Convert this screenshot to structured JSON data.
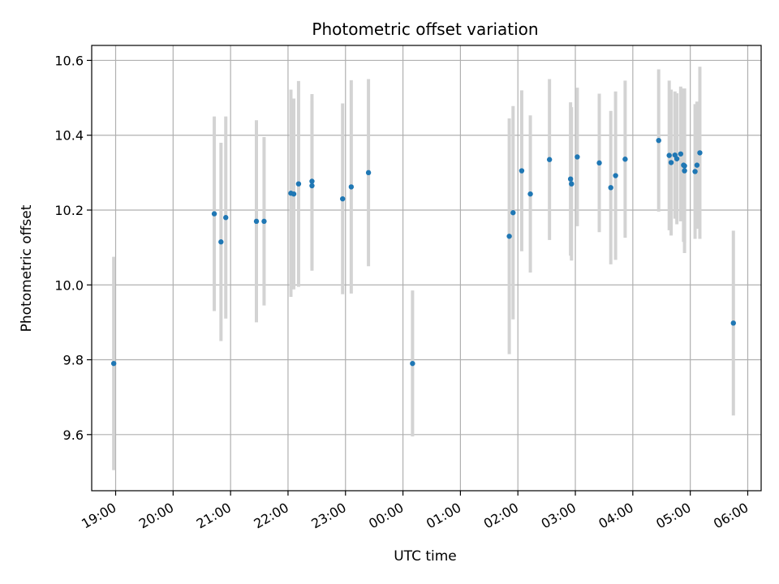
{
  "chart_data": {
    "type": "scatter",
    "title": "Photometric offset variation",
    "xlabel": "UTC time",
    "ylabel": "Photometric offset",
    "x_unit": "UTC date-time",
    "xlim": [
      "2000-01-01T18:35",
      "2000-01-02T06:14"
    ],
    "ylim": [
      9.45,
      10.64
    ],
    "grid": true,
    "x_ticks": [
      {
        "value": "2000-01-01T19:00",
        "label": "19:00"
      },
      {
        "value": "2000-01-01T20:00",
        "label": "20:00"
      },
      {
        "value": "2000-01-01T21:00",
        "label": "21:00"
      },
      {
        "value": "2000-01-01T22:00",
        "label": "22:00"
      },
      {
        "value": "2000-01-01T23:00",
        "label": "23:00"
      },
      {
        "value": "2000-01-02T00:00",
        "label": "00:00"
      },
      {
        "value": "2000-01-02T01:00",
        "label": "01:00"
      },
      {
        "value": "2000-01-02T02:00",
        "label": "02:00"
      },
      {
        "value": "2000-01-02T03:00",
        "label": "03:00"
      },
      {
        "value": "2000-01-02T04:00",
        "label": "04:00"
      },
      {
        "value": "2000-01-02T05:00",
        "label": "05:00"
      },
      {
        "value": "2000-01-02T06:00",
        "label": "06:00"
      }
    ],
    "y_ticks": [
      {
        "value": 9.6,
        "label": "9.6"
      },
      {
        "value": 9.8,
        "label": "9.8"
      },
      {
        "value": 10.0,
        "label": "10.0"
      },
      {
        "value": 10.2,
        "label": "10.2"
      },
      {
        "value": 10.4,
        "label": "10.4"
      },
      {
        "value": 10.6,
        "label": "10.6"
      }
    ],
    "colors": {
      "points": "#1f77b4",
      "error_bars": "#d3d3d3",
      "grid": "#b0b0b0"
    },
    "series": [
      {
        "points": [
          {
            "x": "2000-01-01T18:58",
            "y": 9.79,
            "err": 0.285
          },
          {
            "x": "2000-01-01T20:43",
            "y": 10.19,
            "err": 0.26
          },
          {
            "x": "2000-01-01T20:50",
            "y": 10.115,
            "err": 0.265
          },
          {
            "x": "2000-01-01T20:55",
            "y": 10.18,
            "err": 0.27
          },
          {
            "x": "2000-01-01T21:27",
            "y": 10.17,
            "err": 0.27
          },
          {
            "x": "2000-01-01T21:35",
            "y": 10.17,
            "err": 0.225
          },
          {
            "x": "2000-01-01T22:03",
            "y": 10.245,
            "err": 0.277
          },
          {
            "x": "2000-01-01T22:06",
            "y": 10.243,
            "err": 0.255
          },
          {
            "x": "2000-01-01T22:11",
            "y": 10.27,
            "err": 0.275
          },
          {
            "x": "2000-01-01T22:25",
            "y": 10.265,
            "err": 0.227
          },
          {
            "x": "2000-01-01T22:25",
            "y": 10.277,
            "err": 0.233
          },
          {
            "x": "2000-01-01T22:57",
            "y": 10.23,
            "err": 0.255
          },
          {
            "x": "2000-01-01T23:06",
            "y": 10.262,
            "err": 0.285
          },
          {
            "x": "2000-01-01T23:24",
            "y": 10.3,
            "err": 0.25
          },
          {
            "x": "2000-01-02T00:10",
            "y": 9.79,
            "err": 0.195
          },
          {
            "x": "2000-01-02T01:51",
            "y": 10.13,
            "err": 0.315
          },
          {
            "x": "2000-01-02T01:55",
            "y": 10.193,
            "err": 0.285
          },
          {
            "x": "2000-01-02T02:04",
            "y": 10.305,
            "err": 0.215
          },
          {
            "x": "2000-01-02T02:13",
            "y": 10.243,
            "err": 0.21
          },
          {
            "x": "2000-01-02T02:33",
            "y": 10.335,
            "err": 0.215
          },
          {
            "x": "2000-01-02T02:55",
            "y": 10.283,
            "err": 0.205
          },
          {
            "x": "2000-01-02T02:56",
            "y": 10.27,
            "err": 0.205
          },
          {
            "x": "2000-01-02T03:02",
            "y": 10.342,
            "err": 0.185
          },
          {
            "x": "2000-01-02T03:25",
            "y": 10.326,
            "err": 0.185
          },
          {
            "x": "2000-01-02T03:37",
            "y": 10.26,
            "err": 0.205
          },
          {
            "x": "2000-01-02T03:42",
            "y": 10.292,
            "err": 0.225
          },
          {
            "x": "2000-01-02T03:52",
            "y": 10.336,
            "err": 0.21
          },
          {
            "x": "2000-01-02T04:27",
            "y": 10.386,
            "err": 0.19
          },
          {
            "x": "2000-01-02T04:38",
            "y": 10.346,
            "err": 0.2
          },
          {
            "x": "2000-01-02T04:40",
            "y": 10.327,
            "err": 0.195
          },
          {
            "x": "2000-01-02T04:44",
            "y": 10.347,
            "err": 0.17
          },
          {
            "x": "2000-01-02T04:46",
            "y": 10.337,
            "err": 0.175
          },
          {
            "x": "2000-01-02T04:50",
            "y": 10.35,
            "err": 0.18
          },
          {
            "x": "2000-01-02T04:53",
            "y": 10.32,
            "err": 0.205
          },
          {
            "x": "2000-01-02T04:54",
            "y": 10.305,
            "err": 0.22
          },
          {
            "x": "2000-01-02T04:54",
            "y": 10.318,
            "err": 0.205
          },
          {
            "x": "2000-01-02T05:05",
            "y": 10.303,
            "err": 0.18
          },
          {
            "x": "2000-01-02T05:07",
            "y": 10.32,
            "err": 0.17
          },
          {
            "x": "2000-01-02T05:10",
            "y": 10.353,
            "err": 0.23
          },
          {
            "x": "2000-01-02T05:45",
            "y": 9.898,
            "err": 0.247
          }
        ]
      }
    ]
  }
}
